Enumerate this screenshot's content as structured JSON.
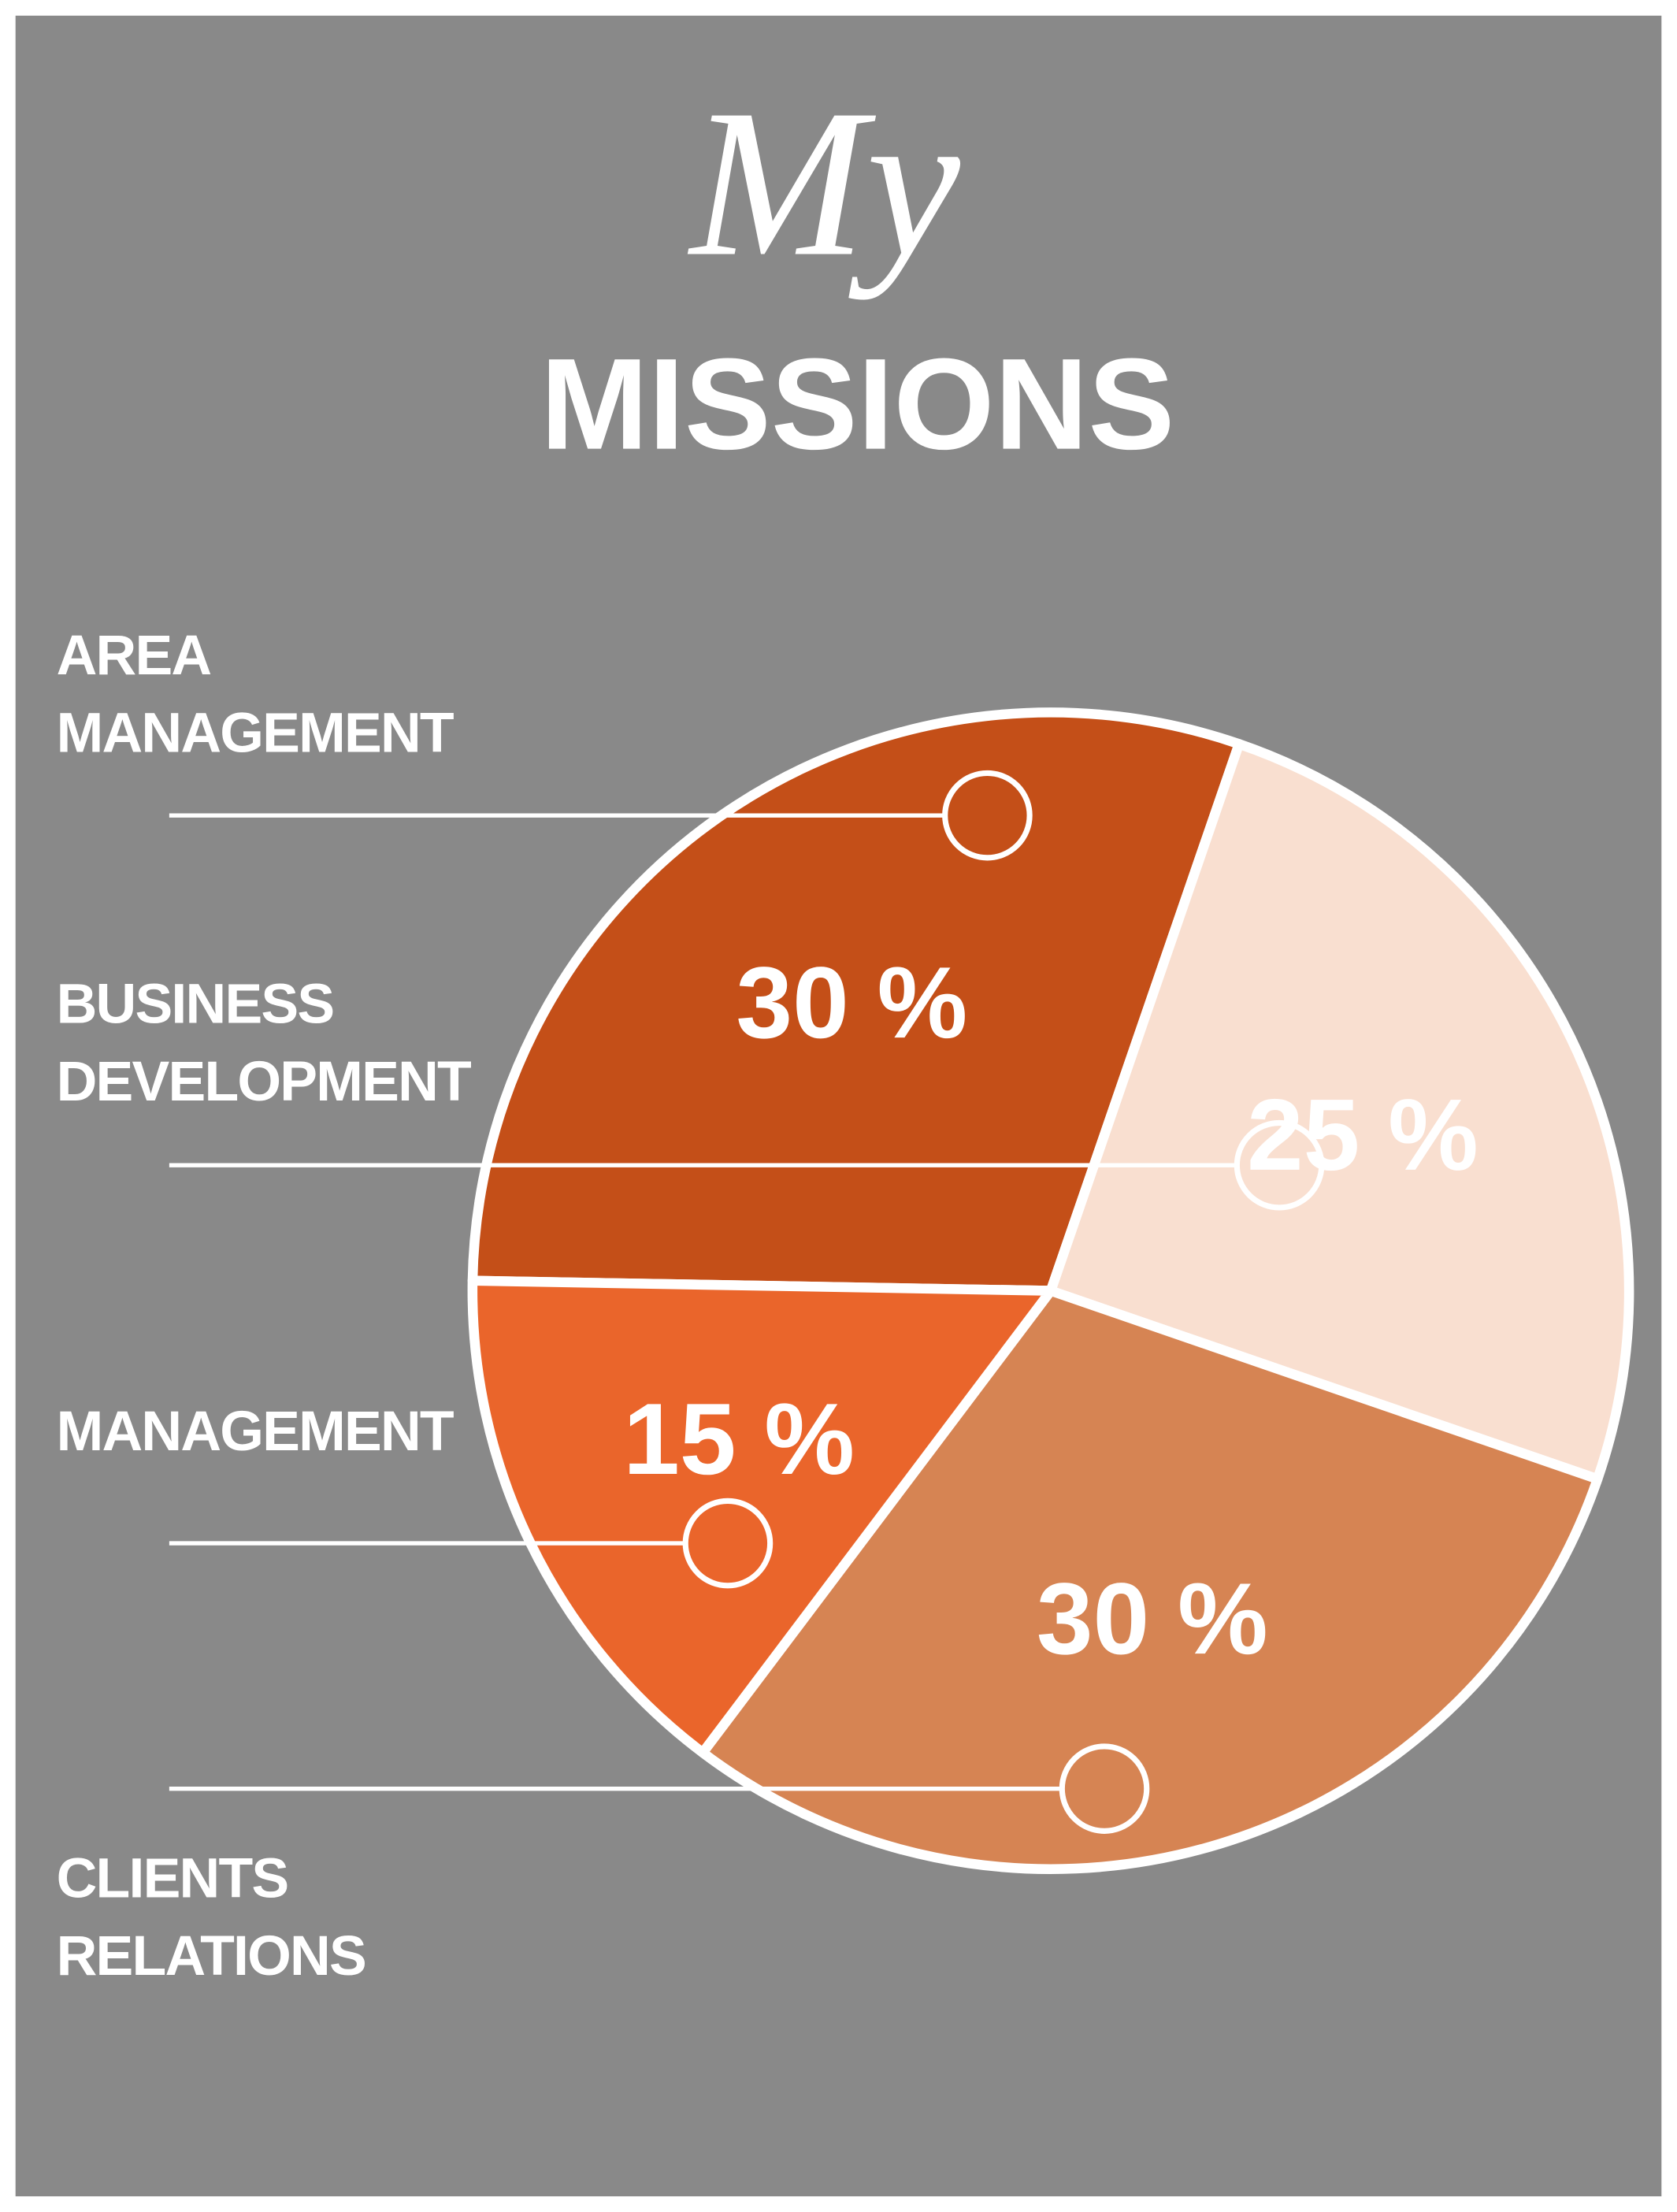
{
  "chart_data": {
    "type": "pie",
    "title": "My",
    "subtitle": "MISSIONS",
    "categories": [
      "AREA MANAGEMENT",
      "BUSINESS DEVELOPMENT",
      "CLIENTS RELATIONS",
      "MANAGEMENT"
    ],
    "values": [
      30,
      25,
      30,
      15
    ],
    "value_labels": [
      "30 %",
      "25 %",
      "30 %",
      "15 %"
    ],
    "colors": [
      "#c44f18",
      "#f9dfd0",
      "#d68453",
      "#ea652b"
    ]
  }
}
